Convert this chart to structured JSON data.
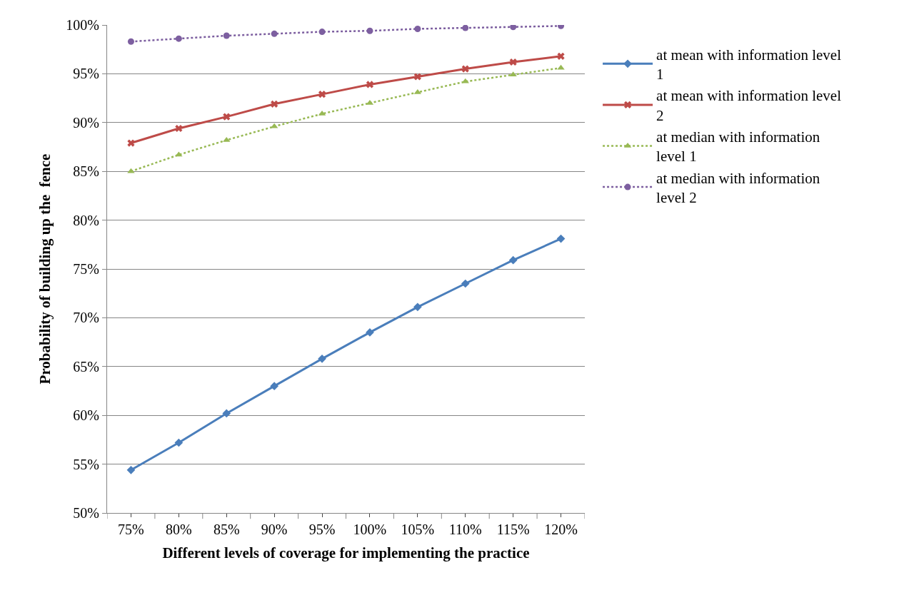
{
  "chart_data": {
    "type": "line",
    "xlabel": "Different levels of coverage for implementing the practice",
    "ylabel": "Probability of building up the  fence",
    "categories": [
      "75%",
      "80%",
      "85%",
      "90%",
      "95%",
      "100%",
      "105%",
      "110%",
      "115%",
      "120%"
    ],
    "series": [
      {
        "name": "at mean with information level 1",
        "color": "#4a7ebb",
        "marker": "diamond",
        "line_style": "solid",
        "values": [
          54.4,
          57.2,
          60.2,
          63.0,
          65.8,
          68.5,
          71.1,
          73.5,
          75.9,
          78.1
        ]
      },
      {
        "name": "at mean with information level 2",
        "color": "#be4b48",
        "marker": "cross",
        "line_style": "solid",
        "values": [
          87.9,
          89.4,
          90.6,
          91.9,
          92.9,
          93.9,
          94.7,
          95.5,
          96.2,
          96.8
        ]
      },
      {
        "name": "at median with information level 1",
        "color": "#98b954",
        "marker": "triangle",
        "line_style": "dotted",
        "values": [
          85.0,
          86.7,
          88.2,
          89.6,
          90.9,
          92.0,
          93.1,
          94.2,
          94.9,
          95.6
        ]
      },
      {
        "name": "at median with information level 2",
        "color": "#7d5fa0",
        "marker": "circle",
        "line_style": "dotted",
        "values": [
          98.3,
          98.6,
          98.9,
          99.1,
          99.3,
          99.4,
          99.6,
          99.7,
          99.8,
          99.9
        ]
      }
    ],
    "ylim": [
      50,
      100
    ],
    "yticks": [
      {
        "value": 50,
        "label": "50%"
      },
      {
        "value": 55,
        "label": "55%"
      },
      {
        "value": 60,
        "label": "60%"
      },
      {
        "value": 65,
        "label": "65%"
      },
      {
        "value": 70,
        "label": "70%"
      },
      {
        "value": 75,
        "label": "75%"
      },
      {
        "value": 80,
        "label": "80%"
      },
      {
        "value": 85,
        "label": "85%"
      },
      {
        "value": 90,
        "label": "90%"
      },
      {
        "value": 95,
        "label": "95%"
      },
      {
        "value": 100,
        "label": "100%"
      }
    ],
    "grid": "y",
    "legend": "right"
  }
}
